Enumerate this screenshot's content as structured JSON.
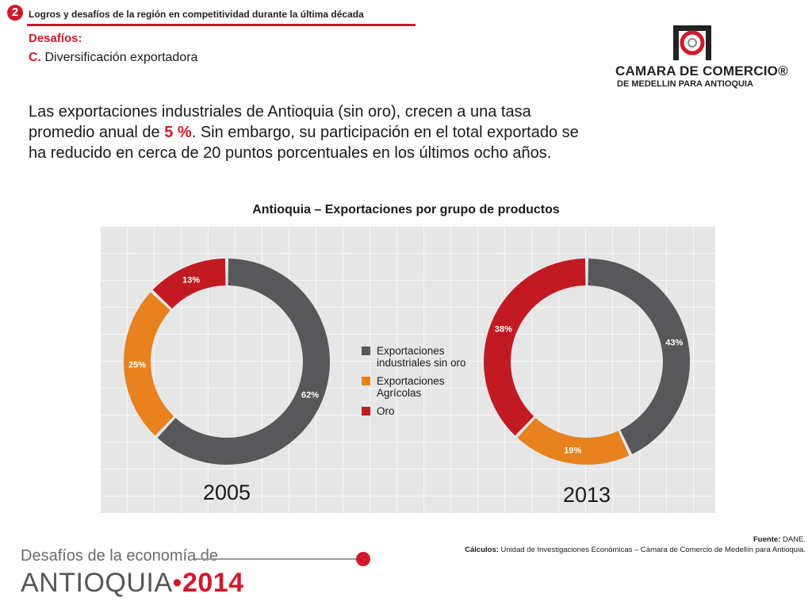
{
  "header": {
    "badge": "2",
    "title": "Logros y desafíos de la región en competitividad durante la última década",
    "section": "Desafíos:",
    "sub_letter": "C.",
    "sub_text": "Diversificación exportadora"
  },
  "logo": {
    "line1": "CAMARA DE COMERCIO®",
    "line2": "DE MEDELLIN PARA ANTIOQUIA"
  },
  "paragraph": {
    "part1": "Las exportaciones industriales de Antioquia (sin oro), crecen a una tasa promedio anual de ",
    "highlight": "5 %",
    "part2": ". Sin embargo, su participación en el total exportado se ha reducido en cerca de 20 puntos porcentuales en los últimos ocho años."
  },
  "colors": {
    "industrial": "#58585a",
    "agricola": "#e8821e",
    "oro": "#c21a23",
    "accent": "#d0192b"
  },
  "chart_data": {
    "type": "pie",
    "title": "Antioquia – Exportaciones por grupo de productos",
    "legend": [
      "Exportaciones industriales sin oro",
      "Exportaciones Agrícolas",
      "Oro"
    ],
    "charts": [
      {
        "label": "2005",
        "slices": [
          {
            "name": "Exportaciones industriales sin oro",
            "value": 62,
            "label": "62%"
          },
          {
            "name": "Exportaciones Agrícolas",
            "value": 25,
            "label": "25%"
          },
          {
            "name": "Oro",
            "value": 13,
            "label": "13%"
          }
        ]
      },
      {
        "label": "2013",
        "slices": [
          {
            "name": "Exportaciones industriales sin oro",
            "value": 43,
            "label": "43%"
          },
          {
            "name": "Exportaciones Agrícolas",
            "value": 19,
            "label": "19%"
          },
          {
            "name": "Oro",
            "value": 38,
            "label": "38%"
          }
        ]
      }
    ]
  },
  "source": {
    "fuente_label": "Fuente:",
    "fuente_text": " DANE.",
    "calculos_label": "Cálculos:",
    "calculos_text": " Unidad de Investigaciones Económicas – Cámara de Comercio de Medellín para Antioquia."
  },
  "footer": {
    "line1": "Desafíos de la economía de",
    "region": "ANTIOQUIA",
    "bullet": "•",
    "year": "2014"
  }
}
